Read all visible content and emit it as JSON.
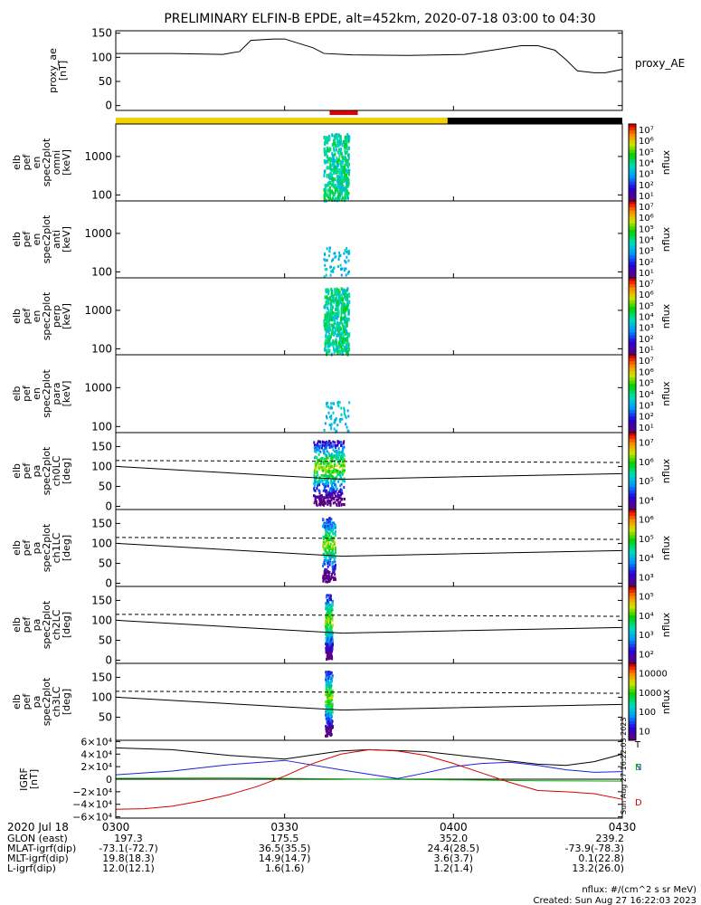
{
  "title": "PRELIMINARY ELFIN-B EPDE, alt=452km, 2020-07-18 03:00 to 04:30",
  "colors": {
    "background": "#ffffff",
    "axis": "#000000",
    "sunlight": "#f5d000",
    "eclipse": "#000000",
    "science_zone": "#e60000",
    "igrf_t": "#000000",
    "igrf_n": "#1f1fd8",
    "igrf_e": "#00b000",
    "igrf_d": "#d40000"
  },
  "orbit_bar": {
    "sunlit_until_time": 215,
    "science_zone_times": [
      38,
      43
    ]
  },
  "time_ticks": [
    {
      "t": 0,
      "label": "0300"
    },
    {
      "t": 30,
      "label": "0330"
    },
    {
      "t": 60,
      "label": "0400"
    },
    {
      "t": 90,
      "label": "0430"
    }
  ],
  "chart_data": [
    {
      "type": "line",
      "id": "proxy_ae",
      "ylabel": [
        "proxy_ae",
        "[nT]"
      ],
      "ylim": [
        -10,
        155
      ],
      "yticks": [
        0,
        50,
        100,
        150
      ],
      "legend": "proxy_AE",
      "x": [
        0,
        10,
        19,
        22,
        24,
        28,
        30,
        35,
        37,
        42,
        52,
        62,
        72,
        75,
        78,
        80,
        82,
        85,
        87,
        90
      ],
      "y": [
        108,
        108,
        106,
        112,
        135,
        138,
        138,
        120,
        108,
        105,
        104,
        106,
        124,
        124,
        115,
        95,
        72,
        68,
        68,
        75
      ]
    },
    {
      "type": "heatmap",
      "id": "spec2plot_omni",
      "ylabel": [
        "elb",
        "pef",
        "en",
        "spec2plot",
        "omni",
        "[keV]"
      ],
      "yscale": "log",
      "yticks": [
        {
          "v": 100,
          "label": "100"
        },
        {
          "v": 1000,
          "label": "1000"
        }
      ],
      "colorbar": {
        "label": "nflux",
        "scale": "log",
        "ticks": [
          "10¹",
          "10²",
          "10³",
          "10⁴",
          "10⁵",
          "10⁶",
          "10⁷"
        ]
      }
    },
    {
      "type": "heatmap",
      "id": "spec2plot_anti",
      "ylabel": [
        "elb",
        "pef",
        "en",
        "spec2plot",
        "anti",
        "[keV]"
      ],
      "yscale": "log",
      "yticks": [
        {
          "v": 100,
          "label": "100"
        },
        {
          "v": 1000,
          "label": "1000"
        }
      ],
      "colorbar": {
        "label": "nflux",
        "scale": "log",
        "ticks": [
          "10¹",
          "10²",
          "10³",
          "10⁴",
          "10⁵",
          "10⁶",
          "10⁷"
        ]
      }
    },
    {
      "type": "heatmap",
      "id": "spec2plot_perp",
      "ylabel": [
        "elb",
        "pef",
        "en",
        "spec2plot",
        "perp",
        "[keV]"
      ],
      "yscale": "log",
      "yticks": [
        {
          "v": 100,
          "label": "100"
        },
        {
          "v": 1000,
          "label": "1000"
        }
      ],
      "colorbar": {
        "label": "nflux",
        "scale": "log",
        "ticks": [
          "10¹",
          "10²",
          "10³",
          "10⁴",
          "10⁵",
          "10⁶",
          "10⁷"
        ]
      }
    },
    {
      "type": "heatmap",
      "id": "spec2plot_para",
      "ylabel": [
        "elb",
        "pef",
        "en",
        "spec2plot",
        "para",
        "[keV]"
      ],
      "yscale": "log",
      "yticks": [
        {
          "v": 100,
          "label": "100"
        },
        {
          "v": 1000,
          "label": "1000"
        }
      ],
      "colorbar": {
        "label": "nflux",
        "scale": "log",
        "ticks": [
          "10¹",
          "10²",
          "10³",
          "10⁴",
          "10⁵",
          "10⁶",
          "10⁷"
        ]
      }
    },
    {
      "type": "heatmap",
      "id": "spec2plot_ch0LC",
      "ylabel": [
        "elb",
        "pef",
        "pa",
        "spec2plot",
        "ch0LC",
        "[deg]"
      ],
      "ylim": [
        -8,
        185
      ],
      "yticks": [
        {
          "v": 0,
          "label": "0"
        },
        {
          "v": 50,
          "label": "50"
        },
        {
          "v": 100,
          "label": "100"
        },
        {
          "v": 150,
          "label": "150"
        }
      ],
      "colorbar": {
        "label": "nflux",
        "scale": "log",
        "ticks": [
          "10⁴",
          "10⁵",
          "10⁶",
          "10⁷"
        ]
      }
    },
    {
      "type": "heatmap",
      "id": "spec2plot_ch1LC",
      "ylabel": [
        "elb",
        "pef",
        "pa",
        "spec2plot",
        "ch1LC",
        "[deg]"
      ],
      "ylim": [
        -8,
        185
      ],
      "yticks": [
        {
          "v": 0,
          "label": "0"
        },
        {
          "v": 50,
          "label": "50"
        },
        {
          "v": 100,
          "label": "100"
        },
        {
          "v": 150,
          "label": "150"
        }
      ],
      "colorbar": {
        "label": "nflux",
        "scale": "log",
        "ticks": [
          "10³",
          "10⁴",
          "10⁵",
          "10⁶"
        ]
      }
    },
    {
      "type": "heatmap",
      "id": "spec2plot_ch2LC",
      "ylabel": [
        "elb",
        "pef",
        "pa",
        "spec2plot",
        "ch2LC",
        "[deg]"
      ],
      "ylim": [
        -8,
        185
      ],
      "yticks": [
        {
          "v": 0,
          "label": "0"
        },
        {
          "v": 50,
          "label": "50"
        },
        {
          "v": 100,
          "label": "100"
        },
        {
          "v": 150,
          "label": "150"
        }
      ],
      "colorbar": {
        "label": "nflux",
        "scale": "log",
        "ticks": [
          "10²",
          "10³",
          "10⁴",
          "10⁵"
        ]
      }
    },
    {
      "type": "heatmap",
      "id": "spec2plot_ch3LC",
      "ylabel": [
        "elb",
        "pef",
        "pa",
        "spec2plot",
        "ch3LC",
        "[deg]"
      ],
      "ylim": [
        -8,
        185
      ],
      "yticks": [
        {
          "v": 50,
          "label": "50"
        },
        {
          "v": 100,
          "label": "100"
        },
        {
          "v": 150,
          "label": "150"
        }
      ],
      "colorbar": {
        "label": "nflux",
        "scale": "log",
        "ticks": [
          "10",
          "100",
          "1000",
          "10000"
        ]
      }
    },
    {
      "type": "line",
      "id": "igrf",
      "ylabel": [
        "IGRF",
        "[nT]"
      ],
      "ylim": [
        -62000,
        62000
      ],
      "yticks": [
        {
          "v": 60000,
          "label": "6×10⁴"
        },
        {
          "v": 40000,
          "label": "4×10⁴"
        },
        {
          "v": 20000,
          "label": "2×10⁴"
        },
        {
          "v": 0,
          "label": "0"
        },
        {
          "v": -20000,
          "label": "−2×10⁴"
        },
        {
          "v": -40000,
          "label": "−4×10⁴"
        },
        {
          "v": -60000,
          "label": "−6×10⁴"
        }
      ],
      "series": [
        {
          "name": "T",
          "x": [
            0,
            10,
            20,
            30,
            40,
            45,
            55,
            65,
            75,
            80,
            85,
            90
          ],
          "y": [
            50000,
            47000,
            38000,
            32000,
            45000,
            47000,
            44000,
            34000,
            24000,
            22000,
            28000,
            40000
          ]
        },
        {
          "name": "N",
          "x": [
            0,
            10,
            20,
            30,
            40,
            45,
            50,
            55,
            60,
            65,
            70,
            75,
            80,
            85,
            90
          ],
          "y": [
            7000,
            13000,
            23000,
            30000,
            15000,
            8000,
            1000,
            10000,
            20000,
            25000,
            27000,
            22000,
            15000,
            11000,
            12000
          ]
        },
        {
          "name": "E",
          "x": [
            0,
            20,
            40,
            60,
            75,
            90
          ],
          "y": [
            1500,
            2000,
            500,
            -1000,
            -2500,
            -3000
          ]
        },
        {
          "name": "D",
          "x": [
            0,
            5,
            10,
            15,
            20,
            25,
            30,
            35,
            40,
            45,
            50,
            55,
            60,
            65,
            70,
            75,
            80,
            85,
            90
          ],
          "y": [
            -48000,
            -47000,
            -43000,
            -35000,
            -25000,
            -12000,
            5000,
            25000,
            40000,
            47000,
            45000,
            38000,
            25000,
            10000,
            -5000,
            -18000,
            -20000,
            -23000,
            -32000
          ]
        }
      ]
    }
  ],
  "ephemeris": {
    "date": "2020 Jul 18",
    "rows": [
      {
        "label": "GLON (east)",
        "values": [
          "197.3",
          "175.5",
          "352.0",
          "239.2"
        ]
      },
      {
        "label": "MLAT-igrf(dip)",
        "values": [
          "-73.1(-72.7)",
          "36.5(35.5)",
          "24.4(28.5)",
          "-73.9(-78.3)"
        ]
      },
      {
        "label": "MLT-igrf(dip)",
        "values": [
          "19.8(18.3)",
          "14.9(14.7)",
          "3.6(3.7)",
          "0.1(22.8)"
        ]
      },
      {
        "label": "L-igrf(dip)",
        "values": [
          "12.0(12.1)",
          "1.6(1.6)",
          "1.2(1.4)",
          "13.2(26.0)"
        ]
      }
    ]
  },
  "side_stamp": "Sun Aug 27 16:22:03 2023",
  "footer": {
    "units": "nflux: #/(cm^2 s sr MeV)",
    "created": "Created: Sun Aug 27 16:22:03 2023"
  }
}
